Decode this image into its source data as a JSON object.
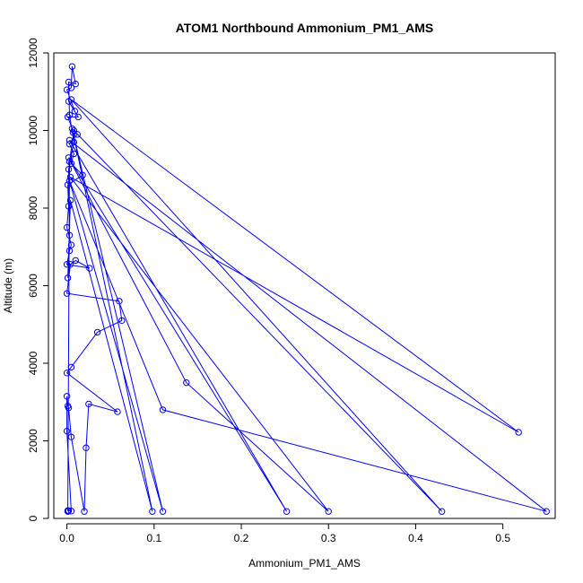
{
  "chart_data": {
    "type": "scatter",
    "title": "ATOM1 Northbound Ammonium_PM1_AMS",
    "xlabel": "Ammonium_PM1_AMS",
    "ylabel": "Altitude (m)",
    "xlim": [
      -0.015,
      0.56
    ],
    "ylim": [
      0,
      12000
    ],
    "xticks": [
      0,
      0.1,
      0.2,
      0.3,
      0.4,
      0.5
    ],
    "xtick_labels": [
      "0.0",
      "0.1",
      "0.2",
      "0.3",
      "0.4",
      "0.5"
    ],
    "yticks": [
      0,
      2000,
      4000,
      6000,
      8000,
      10000,
      12000
    ],
    "ytick_labels": [
      "0",
      "2000",
      "4000",
      "6000",
      "8000",
      "10000",
      "12000"
    ],
    "grid": false,
    "legend": "none",
    "marker": "open-circle",
    "connected": true,
    "color": "#0000ff",
    "points": [
      [
        0.001,
        180
      ],
      [
        0.002,
        200
      ],
      [
        0.005,
        190
      ],
      [
        0.0,
        2250
      ],
      [
        0.0,
        3150
      ],
      [
        0.001,
        2900
      ],
      [
        0.002,
        2850
      ],
      [
        0.005,
        2100
      ],
      [
        0.02,
        180
      ],
      [
        0.022,
        1820
      ],
      [
        0.025,
        2950
      ],
      [
        0.058,
        2750
      ],
      [
        0.0,
        3750
      ],
      [
        0.005,
        3900
      ],
      [
        0.035,
        4800
      ],
      [
        0.063,
        5100
      ],
      [
        0.06,
        5600
      ],
      [
        0.0,
        5800
      ],
      [
        0.004,
        6550
      ],
      [
        0.01,
        6650
      ],
      [
        0.026,
        6450
      ],
      [
        0.0,
        6550
      ],
      [
        0.003,
        6900
      ],
      [
        0.005,
        7050
      ],
      [
        0.0,
        7500
      ],
      [
        0.002,
        8050
      ],
      [
        0.001,
        8600
      ],
      [
        0.018,
        8850
      ],
      [
        0.005,
        9150
      ],
      [
        0.008,
        9400
      ],
      [
        0.003,
        9650
      ],
      [
        0.012,
        9900
      ],
      [
        0.006,
        10050
      ],
      [
        0.001,
        10350
      ],
      [
        0.013,
        10350
      ],
      [
        0.002,
        10750
      ],
      [
        0.009,
        10500
      ],
      [
        0.0,
        11050
      ],
      [
        0.005,
        11100
      ],
      [
        0.006,
        11650
      ],
      [
        0.01,
        11200
      ],
      [
        0.002,
        11250
      ],
      [
        0.003,
        10400
      ],
      [
        0.008,
        9700
      ],
      [
        0.002,
        9000
      ],
      [
        0.003,
        7300
      ],
      [
        0.001,
        6200
      ],
      [
        0.004,
        8200
      ],
      [
        0.098,
        180
      ],
      [
        0.007,
        9950
      ],
      [
        0.11,
        180
      ],
      [
        0.003,
        8700
      ],
      [
        0.11,
        2800
      ],
      [
        0.55,
        180
      ],
      [
        0.003,
        9750
      ],
      [
        0.252,
        180
      ],
      [
        0.002,
        9300
      ],
      [
        0.137,
        3500
      ],
      [
        0.3,
        180
      ],
      [
        0.004,
        8800
      ],
      [
        0.518,
        2220
      ],
      [
        0.005,
        10800
      ],
      [
        0.43,
        180
      ],
      [
        0.008,
        10000
      ],
      [
        0.003,
        9200
      ],
      [
        0.001,
        200
      ]
    ]
  }
}
